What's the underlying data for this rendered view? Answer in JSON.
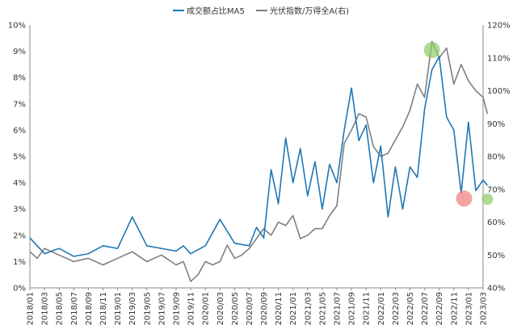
{
  "chart_data": {
    "type": "line",
    "title": "",
    "xlabel": "",
    "ylabel": "",
    "y2label": "",
    "x_ticks": [
      "2018/01",
      "2018/03",
      "2018/05",
      "2018/07",
      "2018/09",
      "2018/11",
      "2019/01",
      "2019/03",
      "2019/05",
      "2019/07",
      "2019/09",
      "2019/11",
      "2020/01",
      "2020/03",
      "2020/05",
      "2020/07",
      "2020/09",
      "2020/11",
      "2021/01",
      "2021/03",
      "2021/05",
      "2021/07",
      "2021/09",
      "2021/11",
      "2022/01",
      "2022/03",
      "2022/05",
      "2022/07",
      "2022/09",
      "2022/11",
      "2023/01",
      "2023/03"
    ],
    "y_left": {
      "ticks": [
        "0%",
        "1%",
        "2%",
        "3%",
        "4%",
        "5%",
        "6%",
        "7%",
        "8%",
        "9%",
        "10%"
      ],
      "min": 0,
      "max": 10
    },
    "y_right": {
      "ticks": [
        "40%",
        "50%",
        "60%",
        "70%",
        "80%",
        "90%",
        "100%",
        "110%",
        "120%"
      ],
      "min": 40,
      "max": 120
    },
    "grid": false,
    "legend_position": "top",
    "series": [
      {
        "name": "成交额占比MA5",
        "axis": "left",
        "color": "#1f77b4",
        "x": [
          0,
          1,
          2,
          3,
          4,
          5,
          6,
          7,
          8,
          9,
          10,
          10.5,
          11,
          12,
          13,
          14,
          15,
          15.5,
          16,
          16.5,
          17,
          17.5,
          18,
          18.5,
          19,
          19.5,
          20,
          20.5,
          21,
          21.5,
          22,
          22.5,
          23,
          23.5,
          24,
          24.5,
          25,
          25.5,
          26,
          26.5,
          27,
          27.5,
          28,
          28.5,
          29,
          29.5,
          30,
          30.5,
          31,
          31.3
        ],
        "values": [
          1.9,
          1.3,
          1.5,
          1.2,
          1.3,
          1.6,
          1.5,
          2.7,
          1.6,
          1.5,
          1.4,
          1.6,
          1.3,
          1.6,
          2.6,
          1.7,
          1.6,
          2.3,
          1.9,
          4.5,
          3.2,
          5.7,
          4.0,
          5.3,
          3.5,
          4.8,
          3.0,
          4.7,
          4.0,
          6.0,
          7.6,
          5.6,
          6.2,
          4.0,
          5.4,
          2.7,
          4.6,
          3.0,
          4.6,
          4.2,
          6.8,
          8.3,
          8.8,
          6.5,
          6.0,
          3.6,
          6.3,
          3.7,
          4.1,
          3.9
        ]
      },
      {
        "name": "光伏指数/万得全A(右)",
        "axis": "right",
        "color": "#7f7f7f",
        "x": [
          0,
          0.5,
          1,
          2,
          3,
          4,
          5,
          6,
          7,
          8,
          9,
          10,
          10.5,
          11,
          11.5,
          12,
          12.5,
          13,
          13.5,
          14,
          14.5,
          15,
          15.5,
          16,
          16.5,
          17,
          17.5,
          18,
          18.5,
          19,
          19.5,
          20,
          20.5,
          21,
          21.5,
          22,
          22.5,
          23,
          23.5,
          24,
          24.5,
          25,
          25.5,
          26,
          26.5,
          27,
          27.5,
          28,
          28.5,
          29,
          29.5,
          30,
          30.5,
          31,
          31.3
        ],
        "values": [
          51,
          49,
          52,
          50,
          48,
          49,
          47,
          49,
          51,
          48,
          50,
          47,
          48,
          42,
          44,
          48,
          47,
          48,
          53,
          49,
          50,
          52,
          55,
          58,
          56,
          60,
          59,
          62,
          55,
          56,
          58,
          58,
          62,
          65,
          84,
          88,
          93,
          92,
          83,
          80,
          81,
          85,
          89,
          94,
          102,
          98,
          115,
          110,
          113,
          102,
          108,
          103,
          100,
          98,
          93
        ]
      }
    ],
    "annotations": [
      {
        "marker": "circle",
        "color": "#8fc963",
        "x": 27.5,
        "value": 9.05,
        "axis": "left"
      },
      {
        "marker": "circle",
        "color": "#f07c7c",
        "x": 29.7,
        "value": 3.4,
        "axis": "left"
      },
      {
        "marker": "circle",
        "color": "#8fc963",
        "x": 31.3,
        "value": 67,
        "axis": "right"
      }
    ]
  }
}
